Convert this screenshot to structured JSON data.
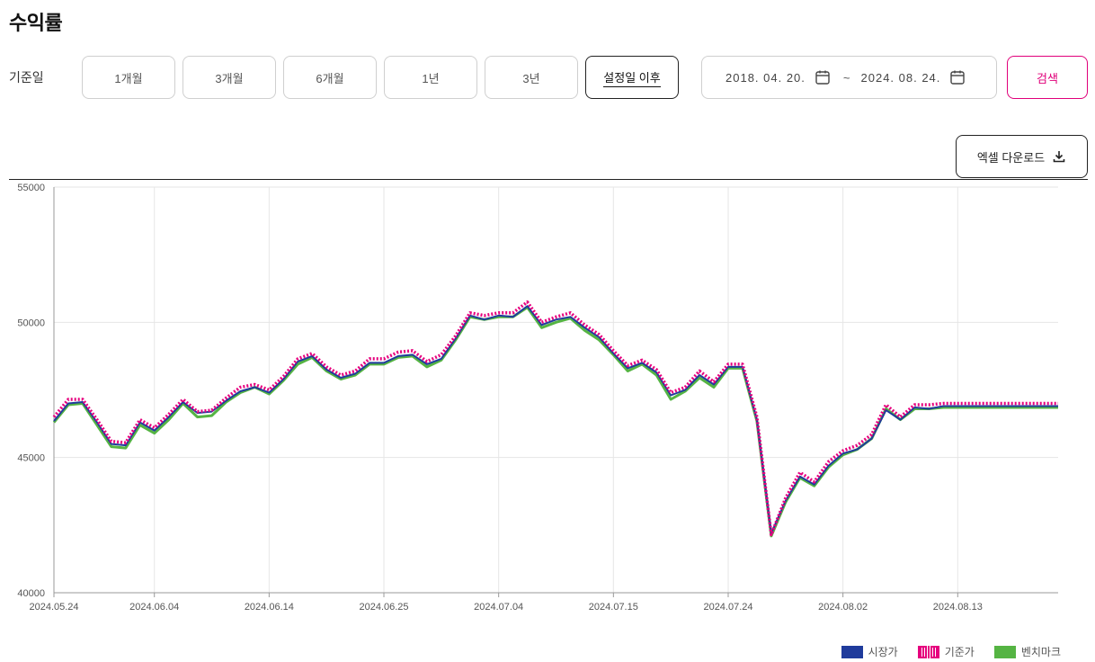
{
  "page": {
    "title": "수익률"
  },
  "filter": {
    "label": "기준일",
    "periods": [
      "1개월",
      "3개월",
      "6개월",
      "1년",
      "3년",
      "설정일 이후"
    ],
    "active_index": 5,
    "start_date": "2018. 04. 20.",
    "end_date": "2024. 08. 24.",
    "separator": "~",
    "search_label": "검색"
  },
  "toolbar": {
    "excel_label": "엑셀 다운로드"
  },
  "chart_data": {
    "type": "line",
    "ylim": [
      40000,
      55000
    ],
    "y_ticks": [
      40000,
      45000,
      50000,
      55000
    ],
    "x_ticks": [
      "2024.05.24",
      "2024.06.04",
      "2024.06.14",
      "2024.06.25",
      "2024.07.04",
      "2024.07.15",
      "2024.07.24",
      "2024.08.02",
      "2024.08.13"
    ],
    "x_tick_index": [
      0,
      7,
      15,
      23,
      31,
      39,
      47,
      55,
      63
    ],
    "point_count": 71,
    "grid": true,
    "legend_position": "bottom-right",
    "series": [
      {
        "name": "시장가",
        "color": "#1f3b9c",
        "style": "solid",
        "values": [
          46350,
          47000,
          47050,
          46300,
          45500,
          45450,
          46300,
          46000,
          46500,
          47050,
          46650,
          46700,
          47100,
          47450,
          47600,
          47400,
          47900,
          48550,
          48750,
          48250,
          47950,
          48100,
          48500,
          48500,
          48750,
          48800,
          48450,
          48650,
          49400,
          50250,
          50100,
          50250,
          50200,
          50600,
          49900,
          50100,
          50200,
          49800,
          49450,
          48850,
          48300,
          48500,
          48150,
          47300,
          47500,
          48050,
          47700,
          48350,
          48350,
          46400,
          42200,
          43400,
          44300,
          44000,
          44700,
          45150,
          45300,
          45700,
          46750,
          46400,
          46850,
          46800,
          46900,
          46900,
          46900,
          46900,
          46900,
          46900,
          46900,
          46900,
          46900
        ]
      },
      {
        "name": "기준가",
        "color": "#e6007e",
        "style": "dotted",
        "values": [
          46500,
          47150,
          47150,
          46400,
          45600,
          45550,
          46400,
          46100,
          46600,
          47150,
          46700,
          46750,
          47200,
          47600,
          47700,
          47500,
          48000,
          48650,
          48850,
          48350,
          48050,
          48200,
          48650,
          48650,
          48900,
          48950,
          48550,
          48800,
          49500,
          50350,
          50250,
          50350,
          50350,
          50750,
          50000,
          50200,
          50350,
          49900,
          49550,
          48950,
          48400,
          48600,
          48250,
          47400,
          47600,
          48200,
          47800,
          48450,
          48450,
          46500,
          42150,
          43500,
          44450,
          44100,
          44850,
          45250,
          45450,
          45850,
          46950,
          46500,
          46950,
          46950,
          47000,
          47000,
          47000,
          47000,
          47000,
          47000,
          47000,
          47000,
          47000
        ]
      },
      {
        "name": "벤치마크",
        "color": "#55b443",
        "style": "solid",
        "values": [
          46300,
          46950,
          47000,
          46200,
          45400,
          45350,
          46200,
          45900,
          46400,
          47000,
          46500,
          46550,
          47050,
          47400,
          47600,
          47350,
          47850,
          48450,
          48700,
          48200,
          47900,
          48050,
          48450,
          48450,
          48700,
          48750,
          48350,
          48600,
          49350,
          50200,
          50100,
          50200,
          50200,
          50550,
          49800,
          50000,
          50150,
          49700,
          49350,
          48800,
          48200,
          48450,
          48050,
          47150,
          47450,
          47950,
          47600,
          48300,
          48300,
          46350,
          42100,
          43350,
          44250,
          43950,
          44650,
          45100,
          45300,
          45700,
          46800,
          46400,
          46800,
          46800,
          46850,
          46850,
          46850,
          46850,
          46850,
          46850,
          46850,
          46850,
          46850
        ]
      }
    ]
  }
}
